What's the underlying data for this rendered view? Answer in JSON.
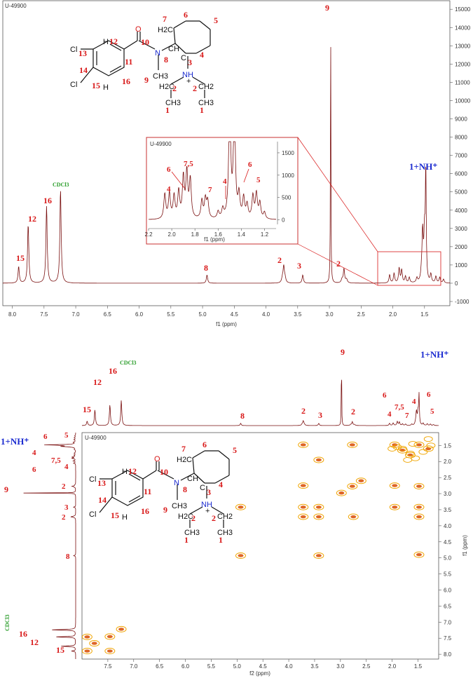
{
  "chart_data": [
    {
      "type": "line",
      "label": "U-49900",
      "xlabel": "f1 (ppm)",
      "xlim": [
        8.15,
        1.1
      ],
      "ylim": [
        -1000,
        15200
      ],
      "xticks": [
        "8.0",
        "7.5",
        "7.0",
        "6.5",
        "6.0",
        "5.5",
        "5.0",
        "4.5",
        "4.0",
        "3.5",
        "3.0",
        "2.5",
        "2.0",
        "1.5"
      ],
      "yticks": [
        "-1000",
        "0",
        "1000",
        "2000",
        "3000",
        "4000",
        "5000",
        "6000",
        "7000",
        "8000",
        "9000",
        "10000",
        "11000",
        "12000",
        "13000",
        "14000",
        "15000"
      ],
      "peaks": [
        {
          "x": 7.9,
          "y": 900,
          "label": "15"
        },
        {
          "x": 7.75,
          "y": 3200,
          "label": "12"
        },
        {
          "x": 7.46,
          "y": 4200,
          "label": "16"
        },
        {
          "x": 7.24,
          "y": 5100,
          "label": "CDCl3"
        },
        {
          "x": 4.93,
          "y": 450,
          "label": "8"
        },
        {
          "x": 3.72,
          "y": 850,
          "label": "2"
        },
        {
          "x": 3.42,
          "y": 450,
          "label": "3"
        },
        {
          "x": 2.98,
          "y": 15200,
          "label": "9"
        },
        {
          "x": 2.77,
          "y": 750,
          "label": "2"
        },
        {
          "x": 1.48,
          "y": 6000,
          "label": "1+NH+"
        }
      ],
      "inset": {
        "label": "U-49900",
        "xlabel": "f1 (ppm)",
        "xlim": [
          2.2,
          1.1
        ],
        "ylim": [
          -100,
          1750
        ],
        "xticks": [
          "2.2",
          "2.0",
          "1.8",
          "1.6",
          "1.4",
          "1.2"
        ],
        "yticks": [
          "0",
          "500",
          "1000",
          "1500"
        ],
        "annotations": [
          "4",
          "6",
          "7,5",
          "7",
          "4",
          "6",
          "5"
        ]
      }
    },
    {
      "type": "heatmap",
      "label": "U-49900",
      "xlabel": "f2 (ppm)",
      "ylabel": "f1 (ppm)",
      "xlim": [
        8.0,
        1.1
      ],
      "ylim": [
        1.1,
        8.15
      ],
      "xticks": [
        "7.5",
        "7.0",
        "6.5",
        "6.0",
        "5.5",
        "5.0",
        "4.5",
        "4.0",
        "3.5",
        "3.0",
        "2.5",
        "2.0",
        "1.5"
      ],
      "yticks": [
        "1.5",
        "2.0",
        "2.5",
        "3.0",
        "3.5",
        "4.0",
        "4.5",
        "5.0",
        "5.5",
        "6.0",
        "6.5",
        "7.0",
        "7.5",
        "8.0"
      ],
      "cross_peaks": [
        {
          "x": 7.9,
          "y": 7.9
        },
        {
          "x": 7.76,
          "y": 7.66
        },
        {
          "x": 7.46,
          "y": 7.45
        },
        {
          "x": 7.24,
          "y": 7.22
        },
        {
          "x": 7.46,
          "y": 7.9
        },
        {
          "x": 7.9,
          "y": 7.46
        },
        {
          "x": 4.93,
          "y": 4.93
        },
        {
          "x": 3.72,
          "y": 3.72
        },
        {
          "x": 3.42,
          "y": 3.42
        },
        {
          "x": 2.98,
          "y": 2.98
        },
        {
          "x": 2.77,
          "y": 2.77
        },
        {
          "x": 1.48,
          "y": 1.48
        },
        {
          "x": 3.72,
          "y": 1.48
        },
        {
          "x": 2.77,
          "y": 1.48
        },
        {
          "x": 1.48,
          "y": 3.72
        },
        {
          "x": 1.48,
          "y": 2.77
        },
        {
          "x": 3.42,
          "y": 1.95
        },
        {
          "x": 3.42,
          "y": 3.72
        },
        {
          "x": 3.72,
          "y": 3.42
        },
        {
          "x": 2.6,
          "y": 2.6
        },
        {
          "x": 3.72,
          "y": 2.75
        },
        {
          "x": 2.75,
          "y": 3.72
        },
        {
          "x": 4.93,
          "y": 3.42
        },
        {
          "x": 3.42,
          "y": 4.93
        },
        {
          "x": 1.48,
          "y": 3.42
        },
        {
          "x": 1.95,
          "y": 3.42
        },
        {
          "x": 1.95,
          "y": 2.75
        },
        {
          "x": 1.48,
          "y": 4.9
        },
        {
          "x": 1.95,
          "y": 1.48
        },
        {
          "x": 1.8,
          "y": 1.65
        },
        {
          "x": 1.65,
          "y": 1.8
        },
        {
          "x": 1.3,
          "y": 1.6
        }
      ],
      "side_labels": [
        "5",
        "6",
        "7",
        "4",
        "7,5",
        "4",
        "6",
        "2",
        "2",
        "9",
        "3",
        "2",
        "8",
        "CDCl3",
        "16",
        "12",
        "15"
      ]
    }
  ],
  "labels": {
    "num1": "1",
    "num2": "2",
    "num3": "3",
    "num4": "4",
    "num5": "5",
    "num6": "6",
    "num7": "7",
    "num8": "8",
    "num9": "9",
    "num10": "10",
    "num11": "11",
    "num12": "12",
    "num13": "13",
    "num14": "14",
    "num15": "15",
    "num16": "16",
    "num75": "7,5",
    "nh": "1+NH⁺",
    "solvent": "CDCl3",
    "atom_cl": "Cl",
    "atom_o": "O",
    "atom_n": "N",
    "atom_nh": "NH",
    "atom_h": "H",
    "atom_ch3": "CH3",
    "atom_h2c": "H2C",
    "atom_ch2": "CH2",
    "atom_ch": "CH",
    "atom_c": "C",
    "plus": "+"
  },
  "colors": {
    "spectrum": "#7a1010",
    "label": "#d81818",
    "nh": "#1b2bd0",
    "solvent": "#2a9d2a",
    "contour": "#f0a500",
    "contour_core": "#d84a00"
  }
}
